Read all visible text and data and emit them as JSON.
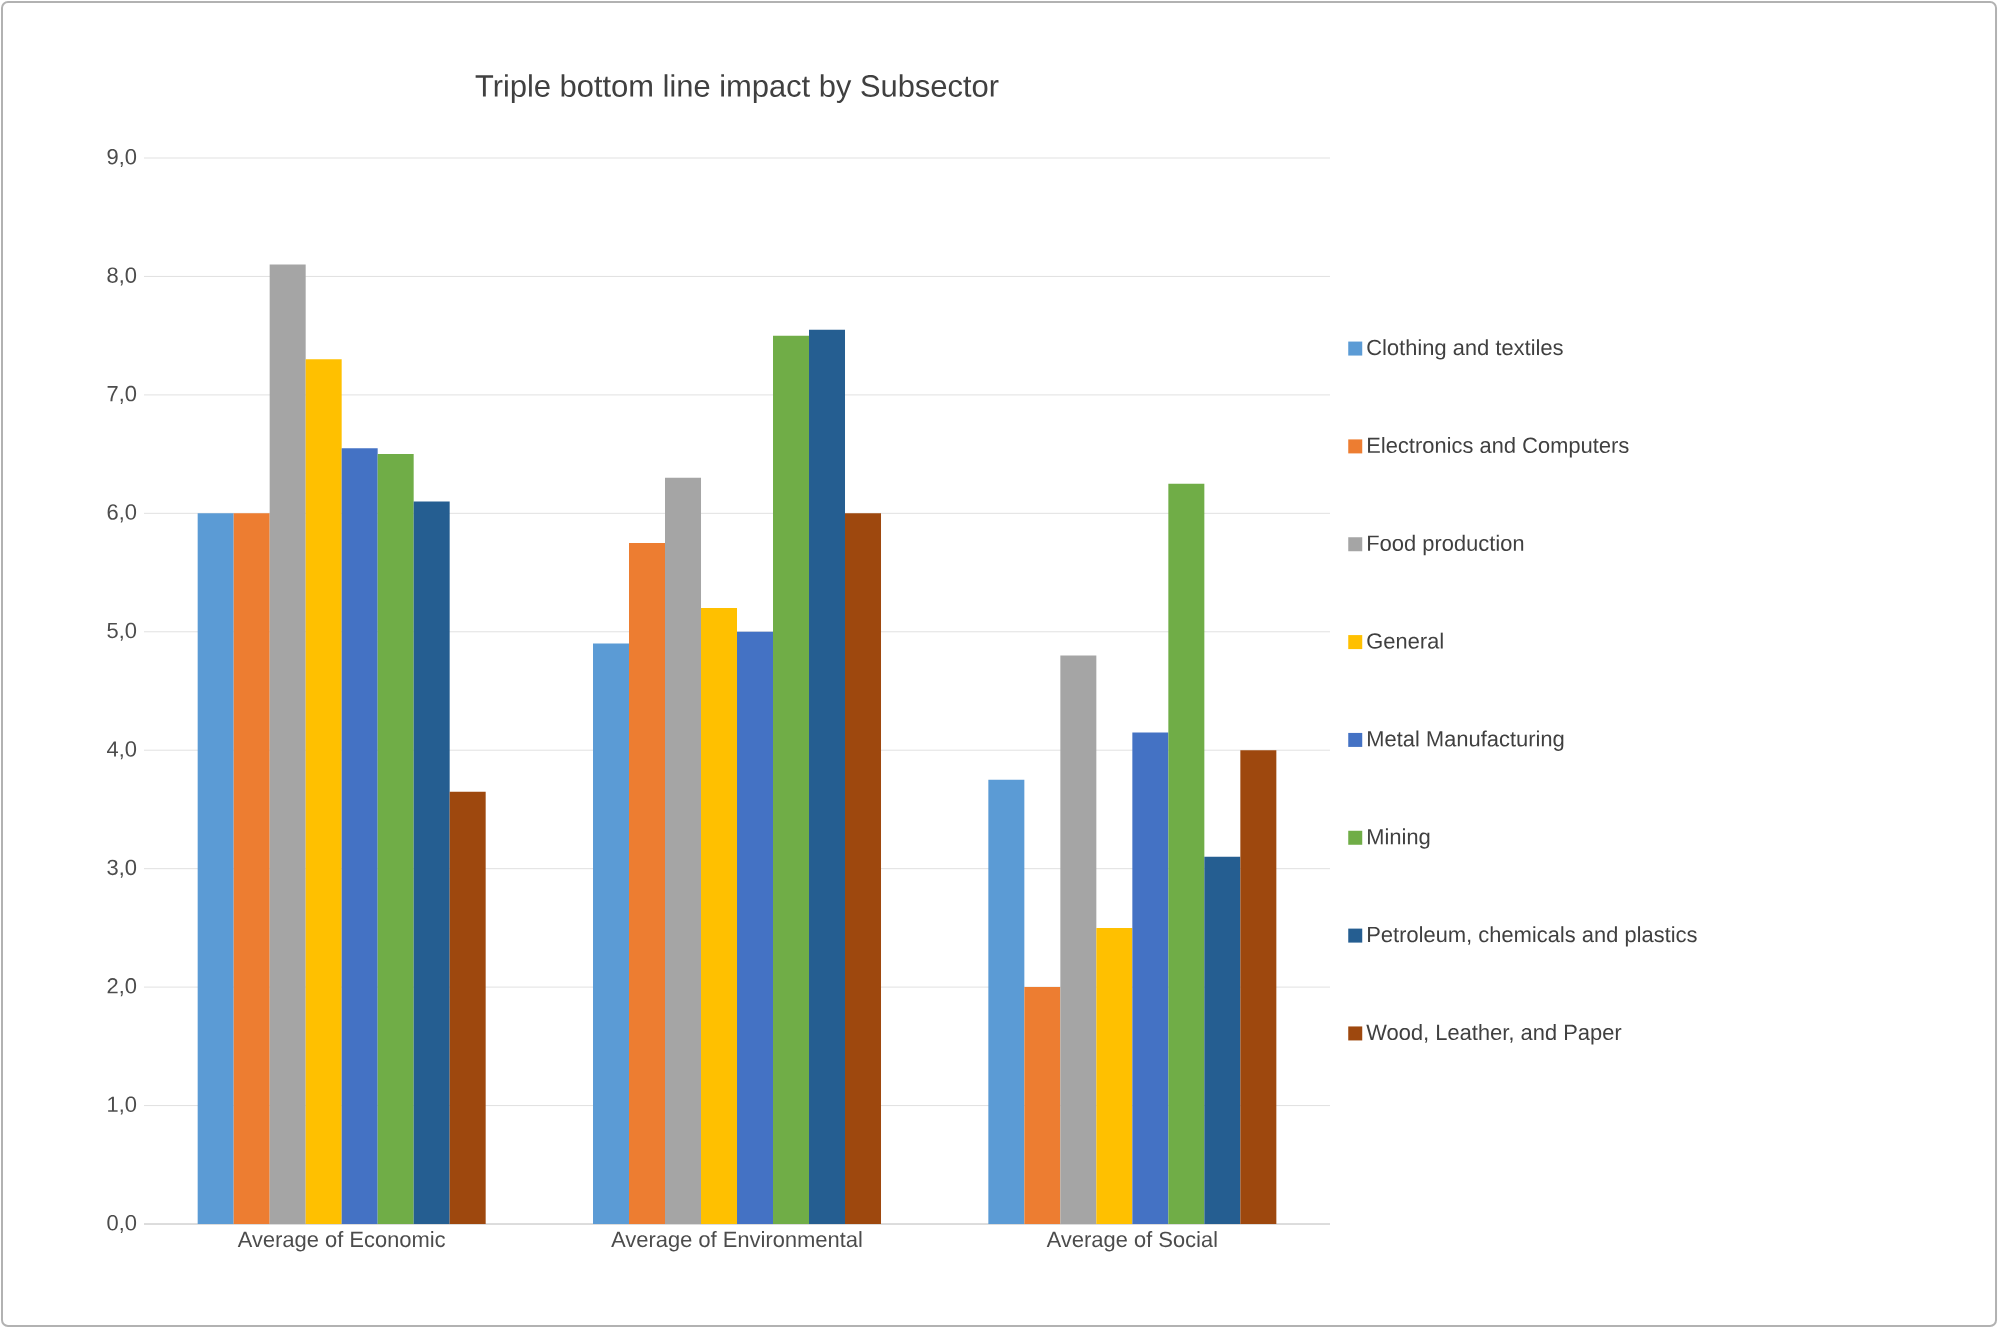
{
  "chart_data": {
    "type": "bar",
    "title": "Triple bottom line impact by Subsector",
    "categories": [
      "Average of Economic",
      "Average of Environmental",
      "Average of Social"
    ],
    "series": [
      {
        "name": "Clothing and textiles",
        "color": "#5b9bd5",
        "values": [
          6.0,
          4.9,
          3.75
        ]
      },
      {
        "name": "Electronics and Computers",
        "color": "#ed7d31",
        "values": [
          6.0,
          5.75,
          2.0
        ]
      },
      {
        "name": "Food production",
        "color": "#a5a5a5",
        "values": [
          8.1,
          6.3,
          4.8
        ]
      },
      {
        "name": "General",
        "color": "#ffc000",
        "values": [
          7.3,
          5.2,
          2.5
        ]
      },
      {
        "name": "Metal Manufacturing",
        "color": "#4472c4",
        "values": [
          6.55,
          5.0,
          4.15
        ]
      },
      {
        "name": "Mining",
        "color": "#70ad47",
        "values": [
          6.5,
          7.5,
          6.25
        ]
      },
      {
        "name": "Petroleum, chemicals and plastics",
        "color": "#255e91",
        "values": [
          6.1,
          7.55,
          3.1
        ]
      },
      {
        "name": "Wood, Leather, and Paper",
        "color": "#9e480e",
        "values": [
          3.65,
          6.0,
          4.0
        ]
      }
    ],
    "ylim": [
      0,
      9
    ],
    "yticks": [
      {
        "value": 0,
        "label": "0,0"
      },
      {
        "value": 1,
        "label": "1,0"
      },
      {
        "value": 2,
        "label": "2,0"
      },
      {
        "value": 3,
        "label": "3,0"
      },
      {
        "value": 4,
        "label": "4,0"
      },
      {
        "value": 5,
        "label": "5,0"
      },
      {
        "value": 6,
        "label": "6,0"
      },
      {
        "value": 7,
        "label": "7,0"
      },
      {
        "value": 8,
        "label": "8,0"
      },
      {
        "value": 9,
        "label": "9,0"
      }
    ],
    "grid": "y",
    "legend": "right"
  }
}
